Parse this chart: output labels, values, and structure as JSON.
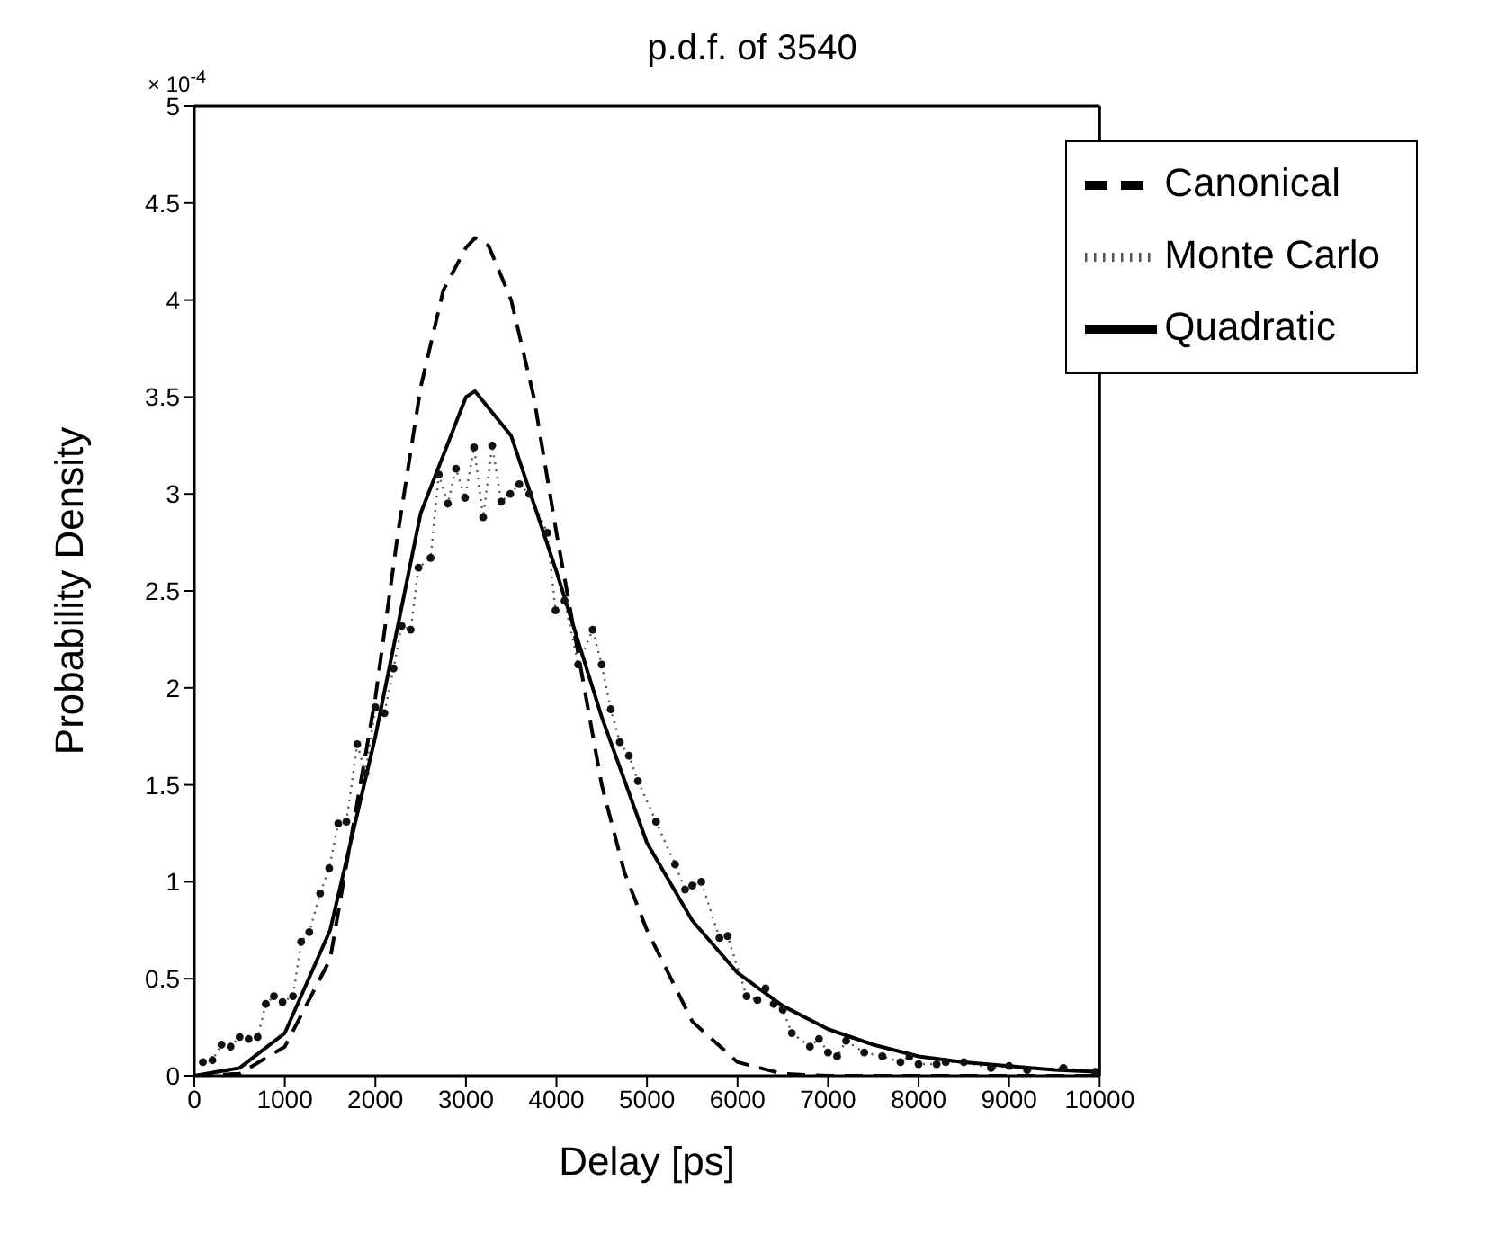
{
  "chart_data": {
    "type": "line",
    "title": "p.d.f. of 3540",
    "xlabel": "Delay [ps]",
    "ylabel": "Probability Density",
    "annotations": [
      "× 10$^{-4}$"
    ],
    "xlim": [
      0,
      10000
    ],
    "xticks": [
      0,
      1000,
      2000,
      3000,
      4000,
      5000,
      6000,
      7000,
      8000,
      9000,
      10000
    ],
    "ylim": [
      0,
      5
    ],
    "yticks": [
      0,
      0.5,
      1,
      1.5,
      2,
      2.5,
      3,
      3.5,
      4,
      4.5,
      5
    ],
    "grid": false,
    "legend": "top right",
    "series": [
      {
        "name": "Monte Carlo",
        "color": "#555555",
        "marker": "circle",
        "line_style": "dotted",
        "x": [
          95,
          200,
          300,
          400,
          500,
          600,
          700,
          790,
          880,
          975,
          1090,
          1180,
          1270,
          1390,
          1490,
          1590,
          1680,
          1800,
          1890,
          2000,
          2100,
          2200,
          2290,
          2390,
          2476,
          2610,
          2700,
          2800,
          2890,
          2990,
          3090,
          3190,
          3290,
          3390,
          3490,
          3590,
          3700,
          3900,
          3990,
          4090,
          4240,
          4400,
          4500,
          4600,
          4700,
          4800,
          4900,
          5100,
          5310,
          5420,
          5500,
          5600,
          5800,
          5890,
          6100,
          6220,
          6310,
          6400,
          6500,
          6600,
          6800,
          6900,
          7000,
          7100,
          7200,
          7400,
          7600,
          7800,
          7900,
          8000,
          8200,
          8300,
          8500,
          8800,
          9000,
          9200,
          9600,
          9950
        ],
        "values": [
          0.07,
          0.08,
          0.16,
          0.15,
          0.2,
          0.19,
          0.2,
          0.37,
          0.41,
          0.38,
          0.41,
          0.69,
          0.74,
          0.94,
          1.07,
          1.3,
          1.31,
          1.71,
          1.56,
          1.9,
          1.87,
          2.1,
          2.32,
          2.3,
          2.62,
          2.67,
          3.1,
          2.95,
          3.13,
          2.98,
          3.24,
          2.88,
          3.25,
          2.96,
          3.0,
          3.05,
          3.0,
          2.8,
          2.4,
          2.45,
          2.12,
          2.3,
          2.12,
          1.89,
          1.72,
          1.65,
          1.52,
          1.31,
          1.09,
          0.96,
          0.98,
          1.0,
          0.71,
          0.72,
          0.41,
          0.39,
          0.45,
          0.37,
          0.34,
          0.22,
          0.15,
          0.19,
          0.12,
          0.1,
          0.18,
          0.12,
          0.1,
          0.07,
          0.1,
          0.06,
          0.06,
          0.07,
          0.07,
          0.04,
          0.05,
          0.03,
          0.04,
          0.02
        ]
      },
      {
        "name": "Canonical",
        "color": "#000000",
        "marker": "none",
        "line_style": "dashed",
        "x": [
          0,
          500,
          1000,
          1500,
          2000,
          2250,
          2500,
          2750,
          3000,
          3100,
          3250,
          3500,
          3750,
          4000,
          4250,
          4500,
          4750,
          5000,
          5500,
          6000,
          6500,
          7000,
          10000
        ],
        "values": [
          0,
          0.01,
          0.15,
          0.6,
          1.95,
          2.8,
          3.55,
          4.05,
          4.27,
          4.32,
          4.28,
          4.0,
          3.5,
          2.8,
          2.15,
          1.5,
          1.05,
          0.75,
          0.28,
          0.07,
          0.01,
          0,
          0
        ]
      },
      {
        "name": "Quadratic",
        "color": "#000000",
        "marker": "none",
        "line_style": "solid",
        "x": [
          0,
          500,
          1000,
          1500,
          2000,
          2500,
          3000,
          3100,
          3500,
          4000,
          4500,
          5000,
          5500,
          6000,
          6500,
          7000,
          7500,
          8000,
          8500,
          9000,
          9500,
          10000
        ],
        "values": [
          0,
          0.04,
          0.22,
          0.75,
          1.75,
          2.9,
          3.5,
          3.53,
          3.3,
          2.6,
          1.85,
          1.2,
          0.8,
          0.53,
          0.36,
          0.24,
          0.16,
          0.1,
          0.07,
          0.05,
          0.03,
          0.02
        ]
      }
    ]
  }
}
